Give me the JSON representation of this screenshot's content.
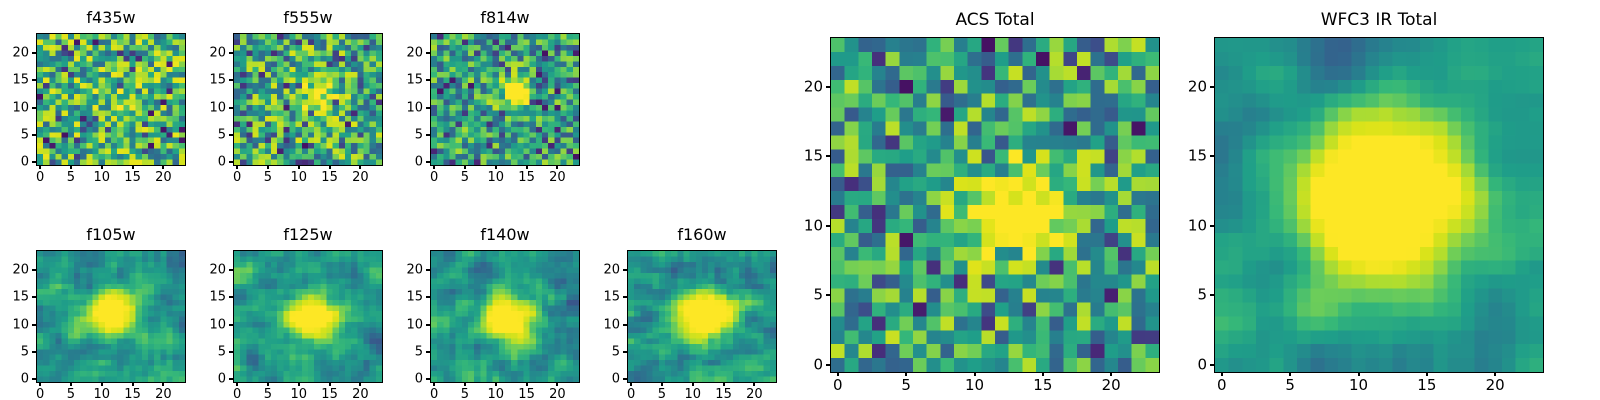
{
  "figure": {
    "background": "#ffffff",
    "text_color": "#000000",
    "axis_color": "#000000"
  },
  "chart_data": {
    "type": "heatmap",
    "colormap": "viridis",
    "colormap_stops": [
      [
        0.0,
        68,
        1,
        84
      ],
      [
        0.1,
        72,
        40,
        120
      ],
      [
        0.2,
        62,
        74,
        137
      ],
      [
        0.3,
        49,
        104,
        142
      ],
      [
        0.4,
        38,
        130,
        142
      ],
      [
        0.5,
        31,
        158,
        137
      ],
      [
        0.6,
        53,
        183,
        121
      ],
      [
        0.7,
        109,
        205,
        89
      ],
      [
        0.8,
        180,
        222,
        44
      ],
      [
        0.9,
        220,
        227,
        25
      ],
      [
        1.0,
        253,
        231,
        37
      ]
    ],
    "panels": [
      {
        "id": "f435w",
        "title": "f435w",
        "size": "small",
        "grid": [
          24,
          24
        ],
        "xlim": [
          -0.5,
          23.5
        ],
        "ylim": [
          -0.5,
          23.5
        ],
        "xticks": [
          0,
          5,
          10,
          15,
          20
        ],
        "yticks": [
          0,
          5,
          10,
          15,
          20
        ],
        "seed": 4351,
        "noise": {
          "base": 0.62,
          "spread": 0.33,
          "dark_fraction": 0.07
        },
        "smooth": 0,
        "source": {
          "x": 12,
          "y": 12,
          "amplitude": 0.12,
          "sigma": 2.5
        }
      },
      {
        "id": "f555w",
        "title": "f555w",
        "size": "small",
        "grid": [
          24,
          24
        ],
        "xlim": [
          -0.5,
          23.5
        ],
        "ylim": [
          -0.5,
          23.5
        ],
        "xticks": [
          0,
          5,
          10,
          15,
          20
        ],
        "yticks": [
          0,
          5,
          10,
          15,
          20
        ],
        "seed": 5551,
        "noise": {
          "base": 0.58,
          "spread": 0.32,
          "dark_fraction": 0.08
        },
        "smooth": 0,
        "source": {
          "x": 13,
          "y": 12,
          "amplitude": 0.32,
          "sigma": 2.2
        }
      },
      {
        "id": "f814w",
        "title": "f814w",
        "size": "small",
        "grid": [
          24,
          24
        ],
        "xlim": [
          -0.5,
          23.5
        ],
        "ylim": [
          -0.5,
          23.5
        ],
        "xticks": [
          0,
          5,
          10,
          15,
          20
        ],
        "yticks": [
          0,
          5,
          10,
          15,
          20
        ],
        "seed": 8141,
        "noise": {
          "base": 0.52,
          "spread": 0.28,
          "dark_fraction": 0.08
        },
        "smooth": 0,
        "source": {
          "x": 13,
          "y": 13,
          "amplitude": 0.85,
          "sigma": 1.8
        }
      },
      {
        "id": "f105w",
        "title": "f105w",
        "size": "small",
        "grid": [
          24,
          24
        ],
        "xlim": [
          -0.5,
          23.5
        ],
        "ylim": [
          -0.5,
          23.5
        ],
        "xticks": [
          0,
          5,
          10,
          15,
          20
        ],
        "yticks": [
          0,
          5,
          10,
          15,
          20
        ],
        "seed": 1051,
        "noise": {
          "base": 0.5,
          "spread": 0.34,
          "dark_fraction": 0.09
        },
        "smooth": 1,
        "source": {
          "x": 12,
          "y": 12,
          "amplitude": 0.82,
          "sigma": 2.6
        }
      },
      {
        "id": "f125w",
        "title": "f125w",
        "size": "small",
        "grid": [
          24,
          24
        ],
        "xlim": [
          -0.5,
          23.5
        ],
        "ylim": [
          -0.5,
          23.5
        ],
        "xticks": [
          0,
          5,
          10,
          15,
          20
        ],
        "yticks": [
          0,
          5,
          10,
          15,
          20
        ],
        "seed": 1251,
        "noise": {
          "base": 0.5,
          "spread": 0.34,
          "dark_fraction": 0.09
        },
        "smooth": 1,
        "source": {
          "x": 12,
          "y": 11,
          "amplitude": 0.82,
          "sigma": 2.8
        }
      },
      {
        "id": "f140w",
        "title": "f140w",
        "size": "small",
        "grid": [
          24,
          24
        ],
        "xlim": [
          -0.5,
          23.5
        ],
        "ylim": [
          -0.5,
          23.5
        ],
        "xticks": [
          0,
          5,
          10,
          15,
          20
        ],
        "yticks": [
          0,
          5,
          10,
          15,
          20
        ],
        "seed": 1401,
        "noise": {
          "base": 0.5,
          "spread": 0.34,
          "dark_fraction": 0.09
        },
        "smooth": 1,
        "source": {
          "x": 12,
          "y": 11,
          "amplitude": 0.85,
          "sigma": 2.8
        }
      },
      {
        "id": "f160w",
        "title": "f160w",
        "size": "small",
        "grid": [
          24,
          24
        ],
        "xlim": [
          -0.5,
          23.5
        ],
        "ylim": [
          -0.5,
          23.5
        ],
        "xticks": [
          0,
          5,
          10,
          15,
          20
        ],
        "yticks": [
          0,
          5,
          10,
          15,
          20
        ],
        "seed": 1601,
        "noise": {
          "base": 0.5,
          "spread": 0.36,
          "dark_fraction": 0.1
        },
        "smooth": 1,
        "source": {
          "x": 12,
          "y": 12,
          "amplitude": 0.92,
          "sigma": 3.0
        }
      },
      {
        "id": "acs-total",
        "title": "ACS Total",
        "size": "large",
        "grid": [
          24,
          24
        ],
        "xlim": [
          -0.5,
          23.5
        ],
        "ylim": [
          -0.5,
          23.5
        ],
        "xticks": [
          0,
          5,
          10,
          15,
          20
        ],
        "yticks": [
          0,
          5,
          10,
          15,
          20
        ],
        "seed": 2001,
        "noise": {
          "base": 0.55,
          "spread": 0.3,
          "dark_fraction": 0.08
        },
        "smooth": 0,
        "source": {
          "x": 13,
          "y": 11,
          "amplitude": 0.75,
          "sigma": 2.3
        }
      },
      {
        "id": "wfc3-ir-total",
        "title": "WFC3 IR Total",
        "size": "large",
        "grid": [
          24,
          24
        ],
        "xlim": [
          -0.5,
          23.5
        ],
        "ylim": [
          -0.5,
          23.5
        ],
        "xticks": [
          0,
          5,
          10,
          15,
          20
        ],
        "yticks": [
          0,
          5,
          10,
          15,
          20
        ],
        "seed": 3001,
        "noise": {
          "base": 0.48,
          "spread": 0.42,
          "dark_fraction": 0.1
        },
        "smooth": 2,
        "source": {
          "x": 12,
          "y": 12,
          "amplitude": 1.0,
          "sigma": 4.2
        }
      }
    ]
  }
}
